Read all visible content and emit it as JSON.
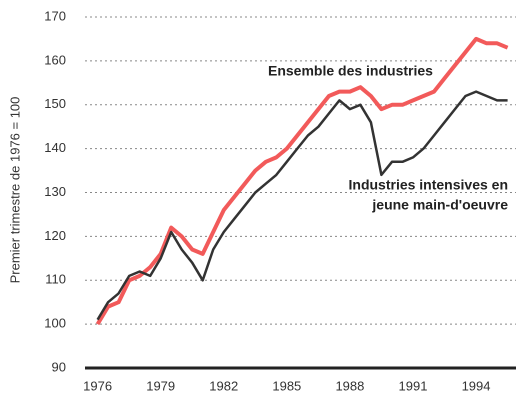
{
  "chart_data": {
    "type": "line",
    "y_label": "Premier trimestre de 1976 = 100",
    "annotations": [
      "Ensemble des industries",
      "Industries intensives en",
      "jeune main-d'oeuvre"
    ],
    "x": [
      1976,
      1976.5,
      1977,
      1977.5,
      1978,
      1978.5,
      1979,
      1979.5,
      1980,
      1980.5,
      1981,
      1981.5,
      1982,
      1982.5,
      1983,
      1983.5,
      1984,
      1984.5,
      1985,
      1985.5,
      1986,
      1986.5,
      1987,
      1987.5,
      1988,
      1988.5,
      1989,
      1989.5,
      1990,
      1990.5,
      1991,
      1991.5,
      1992,
      1992.5,
      1993,
      1993.5,
      1994,
      1994.5,
      1995,
      1995.5
    ],
    "series": [
      {
        "color": "#f25a5a",
        "values": [
          100,
          104,
          105,
          110,
          111,
          113,
          116,
          122,
          120,
          117,
          116,
          121,
          126,
          129,
          132,
          135,
          137,
          138,
          140,
          143,
          146,
          149,
          152,
          153,
          153,
          154,
          152,
          149,
          150,
          150,
          151,
          152,
          153,
          156,
          159,
          162,
          165,
          164,
          164,
          163
        ]
      },
      {
        "color": "#333333",
        "values": [
          101,
          105,
          107,
          111,
          112,
          111,
          115,
          121,
          117,
          114,
          110,
          117,
          121,
          124,
          127,
          130,
          132,
          134,
          137,
          140,
          143,
          145,
          148,
          151,
          149,
          150,
          146,
          134,
          137,
          137,
          138,
          140,
          143,
          146,
          149,
          152,
          153,
          152,
          151,
          151
        ]
      }
    ],
    "xlim": [
      1975.4,
      1995.9
    ],
    "xticks": [
      1976,
      1979,
      1982,
      1985,
      1988,
      1991,
      1994
    ],
    "ylim": [
      90,
      170
    ],
    "yticks": [
      90,
      100,
      110,
      120,
      130,
      140,
      150,
      160,
      170
    ],
    "grid": true
  }
}
